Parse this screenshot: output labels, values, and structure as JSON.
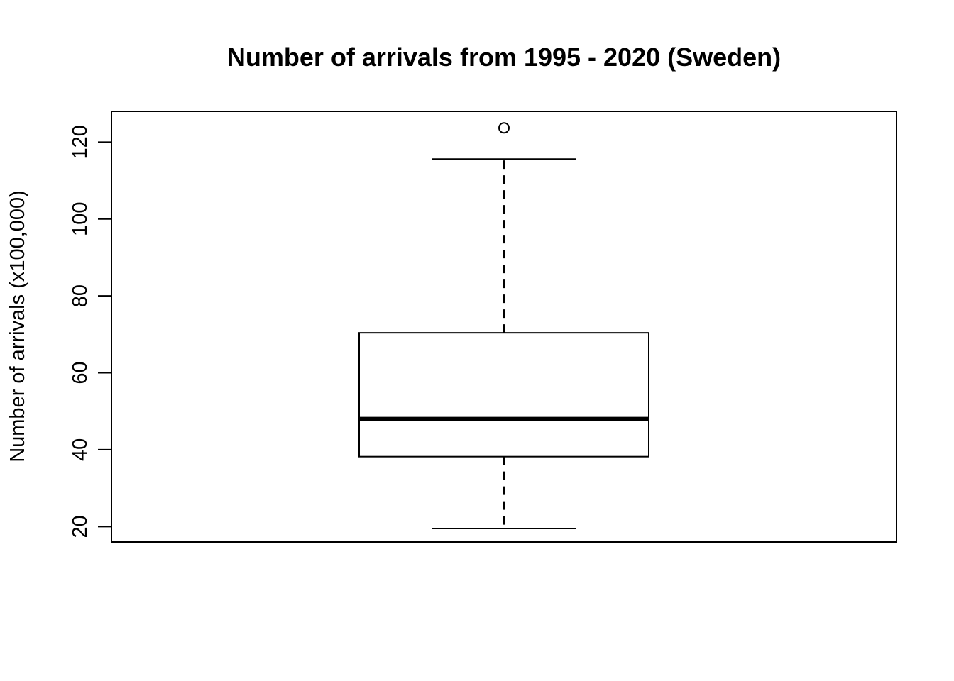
{
  "chart_data": {
    "type": "box",
    "title": "Number of arrivals from 1995 - 2020 (Sweden)",
    "xlabel": "",
    "ylabel": "Number of arrivals (x100,000)",
    "ylim": [
      16,
      128
    ],
    "yticks": [
      20,
      40,
      60,
      80,
      100,
      120
    ],
    "ytick_labels": [
      "20",
      "40",
      "60",
      "80",
      "100",
      "120"
    ],
    "grid": false,
    "legend": "none",
    "box": {
      "whisker_low": 19.5,
      "q1": 38.2,
      "median": 48.0,
      "q3": 70.4,
      "whisker_high": 115.6,
      "outliers": [
        123.7
      ]
    }
  }
}
